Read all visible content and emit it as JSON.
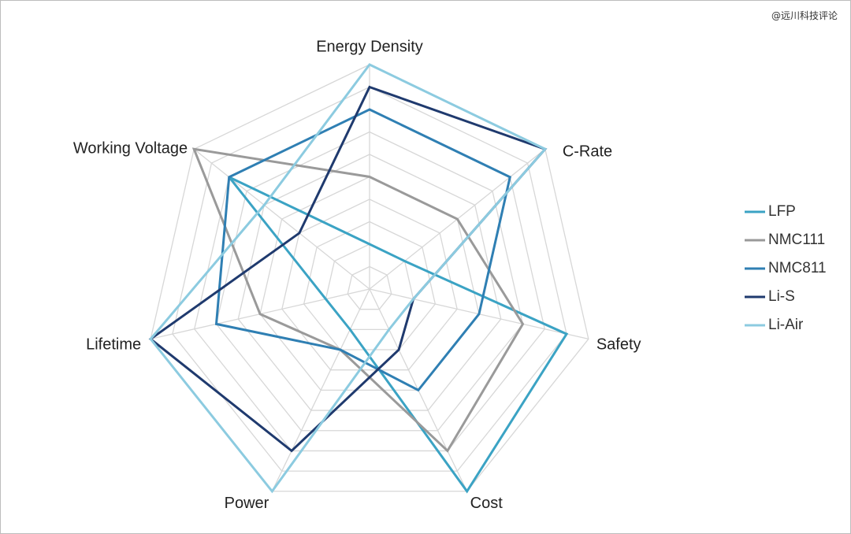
{
  "watermark": "@远川科技评论",
  "chart_data": {
    "type": "radar",
    "title": "",
    "axes": [
      "Energy Density",
      "C-Rate",
      "Safety",
      "Cost",
      "Power",
      "Lifetime",
      "Working Voltage"
    ],
    "range": [
      0,
      10
    ],
    "rings": 10,
    "grid": true,
    "legend_position": "right",
    "series": [
      {
        "name": "LFP",
        "color": "#3ba3c4",
        "values": [
          2,
          2,
          9,
          10,
          2,
          2,
          8
        ]
      },
      {
        "name": "NMC111",
        "color": "#9a9a9a",
        "values": [
          5,
          5,
          7,
          8,
          3,
          5,
          10
        ]
      },
      {
        "name": "NMC811",
        "color": "#2f7fb3",
        "values": [
          8,
          8,
          5,
          5,
          3,
          7,
          8
        ]
      },
      {
        "name": "Li-S",
        "color": "#1f3a6e",
        "values": [
          9,
          10,
          2,
          3,
          8,
          10,
          4
        ]
      },
      {
        "name": "Li-Air",
        "color": "#8ccbe0",
        "values": [
          10,
          10,
          2,
          2,
          10,
          10,
          6
        ]
      }
    ]
  }
}
